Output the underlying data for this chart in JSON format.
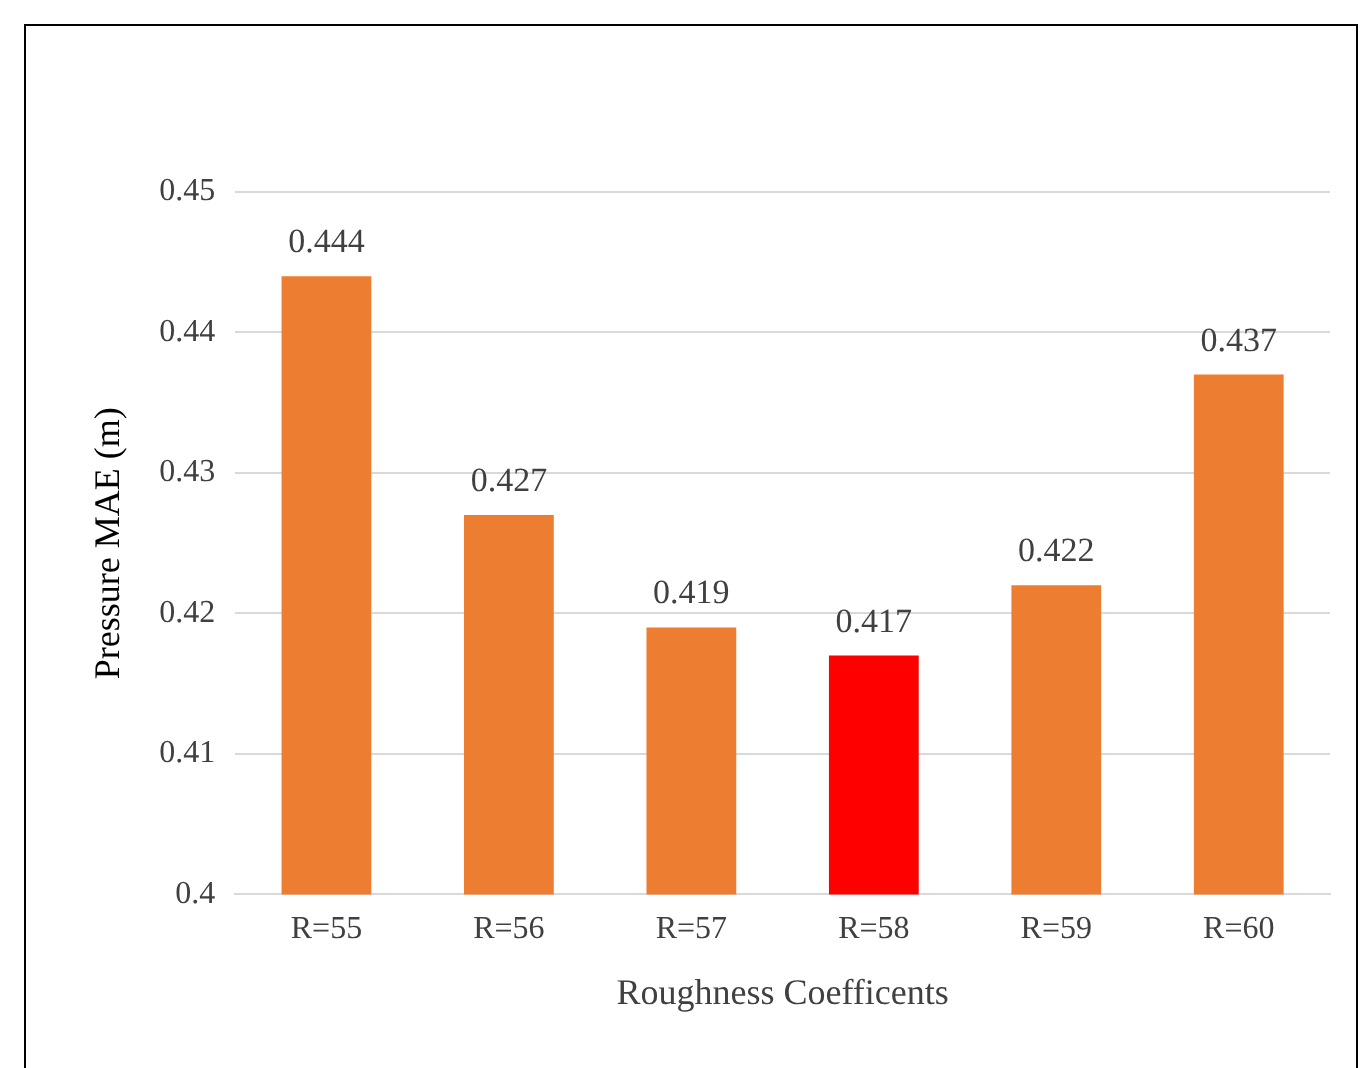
{
  "chart_data": {
    "type": "bar",
    "xlabel": "Roughness Coefficents",
    "ylabel": "Pressure MAE (m)",
    "categories": [
      "R=55",
      "R=56",
      "R=57",
      "R=58",
      "R=59",
      "R=60"
    ],
    "values": [
      0.444,
      0.427,
      0.419,
      0.417,
      0.422,
      0.437
    ],
    "colors": [
      "#ed7d31",
      "#ed7d31",
      "#ed7d31",
      "#ff0000",
      "#ed7d31",
      "#ed7d31"
    ],
    "ylim": [
      0.4,
      0.45
    ],
    "yticks": [
      0.4,
      0.41,
      0.42,
      0.43,
      0.44,
      0.45
    ],
    "grid": "y",
    "data_labels": true
  }
}
